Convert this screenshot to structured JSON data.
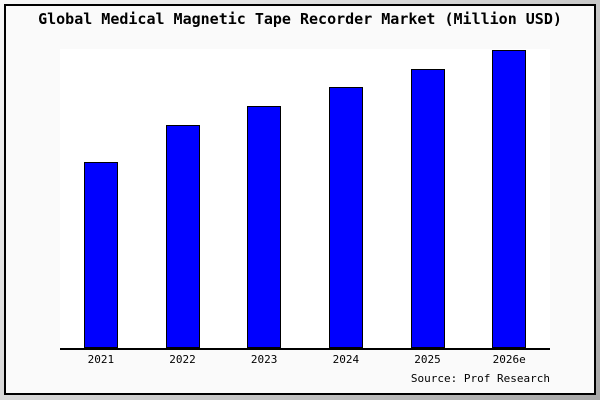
{
  "chart_data": {
    "type": "bar",
    "title": "Global Medical Magnetic Tape Recorder Market (Million USD)",
    "categories": [
      "2021",
      "2022",
      "2023",
      "2024",
      "2025",
      "2026e"
    ],
    "values": [
      186,
      223,
      242,
      261,
      279,
      298
    ],
    "values_unit": "relative height (y-axis has no tick labels in chart)",
    "xlabel": "",
    "ylabel": "",
    "ylim": [
      0,
      299
    ],
    "grid": false,
    "legend": false,
    "y_axis_ticks_visible": false,
    "bar_fill_color": "#0000ff",
    "bar_border_color": "#000000",
    "plot_background": "#ffffff",
    "figure_background": "#fafafa",
    "source_note": "Source: Prof Research"
  }
}
